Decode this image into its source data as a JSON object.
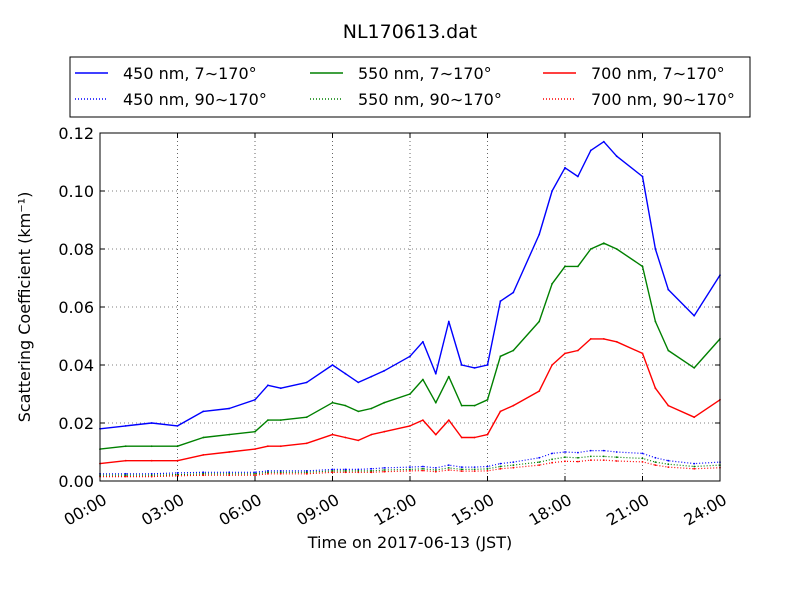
{
  "chart_data": {
    "type": "line",
    "title": "NL170613.dat",
    "xlabel": "Time on 2017-06-13 (JST)",
    "ylabel": "Scattering Coefficient (km⁻¹)",
    "x_ticks": [
      "00:00",
      "03:00",
      "06:00",
      "09:00",
      "12:00",
      "15:00",
      "18:00",
      "21:00",
      "24:00"
    ],
    "y_ticks": [
      "0.00",
      "0.02",
      "0.04",
      "0.06",
      "0.08",
      "0.10",
      "0.12"
    ],
    "xlim": [
      "00:00",
      "24:00"
    ],
    "ylim": [
      0,
      0.12
    ],
    "grid": true,
    "legend_position": "top",
    "x": [
      "00:00",
      "01:00",
      "02:00",
      "03:00",
      "04:00",
      "05:00",
      "06:00",
      "06:30",
      "07:00",
      "08:00",
      "09:00",
      "09:30",
      "10:00",
      "10:30",
      "11:00",
      "12:00",
      "12:30",
      "13:00",
      "13:30",
      "14:00",
      "14:30",
      "15:00",
      "15:30",
      "16:00",
      "17:00",
      "17:30",
      "18:00",
      "18:30",
      "19:00",
      "19:30",
      "20:00",
      "21:00",
      "21:30",
      "22:00",
      "23:00",
      "24:00"
    ],
    "series": [
      {
        "name": "450 nm, 7∼170°",
        "color": "#0000ff",
        "style": "solid",
        "values": [
          0.018,
          0.019,
          0.02,
          0.019,
          0.024,
          0.025,
          0.028,
          0.033,
          0.032,
          0.034,
          0.04,
          0.037,
          0.034,
          0.036,
          0.038,
          0.043,
          0.048,
          0.037,
          0.055,
          0.04,
          0.039,
          0.04,
          0.062,
          0.065,
          0.085,
          0.1,
          0.108,
          0.105,
          0.114,
          0.117,
          0.112,
          0.105,
          0.08,
          0.066,
          0.057,
          0.071
        ]
      },
      {
        "name": "450 nm, 90∼170°",
        "color": "#0000ff",
        "style": "dotted",
        "values": [
          0.0025,
          0.0025,
          0.0025,
          0.0028,
          0.003,
          0.003,
          0.003,
          0.0035,
          0.0035,
          0.0035,
          0.004,
          0.004,
          0.004,
          0.0042,
          0.0045,
          0.0048,
          0.005,
          0.0045,
          0.0055,
          0.0048,
          0.0048,
          0.005,
          0.006,
          0.0065,
          0.008,
          0.0095,
          0.01,
          0.0098,
          0.0105,
          0.0105,
          0.01,
          0.0095,
          0.008,
          0.007,
          0.006,
          0.0065
        ]
      },
      {
        "name": "550 nm, 7∼170°",
        "color": "#008000",
        "style": "solid",
        "values": [
          0.011,
          0.012,
          0.012,
          0.012,
          0.015,
          0.016,
          0.017,
          0.021,
          0.021,
          0.022,
          0.027,
          0.026,
          0.024,
          0.025,
          0.027,
          0.03,
          0.035,
          0.027,
          0.036,
          0.026,
          0.026,
          0.028,
          0.043,
          0.045,
          0.055,
          0.068,
          0.074,
          0.074,
          0.08,
          0.082,
          0.08,
          0.074,
          0.055,
          0.045,
          0.039,
          0.049
        ]
      },
      {
        "name": "550 nm, 90∼170°",
        "color": "#008000",
        "style": "dotted",
        "values": [
          0.002,
          0.002,
          0.002,
          0.0022,
          0.0025,
          0.0025,
          0.0025,
          0.003,
          0.003,
          0.003,
          0.0035,
          0.0035,
          0.0035,
          0.0035,
          0.0038,
          0.004,
          0.0042,
          0.0038,
          0.0045,
          0.004,
          0.004,
          0.0042,
          0.005,
          0.0055,
          0.0065,
          0.0075,
          0.0082,
          0.008,
          0.0085,
          0.0085,
          0.0082,
          0.0078,
          0.0065,
          0.0058,
          0.005,
          0.0055
        ]
      },
      {
        "name": "700 nm, 7∼170°",
        "color": "#ff0000",
        "style": "solid",
        "values": [
          0.006,
          0.007,
          0.007,
          0.007,
          0.009,
          0.01,
          0.011,
          0.012,
          0.012,
          0.013,
          0.016,
          0.015,
          0.014,
          0.016,
          0.017,
          0.019,
          0.021,
          0.016,
          0.021,
          0.015,
          0.015,
          0.016,
          0.024,
          0.026,
          0.031,
          0.04,
          0.044,
          0.045,
          0.049,
          0.049,
          0.048,
          0.044,
          0.032,
          0.026,
          0.022,
          0.028
        ]
      },
      {
        "name": "700 nm, 90∼170°",
        "color": "#ff0000",
        "style": "dotted",
        "values": [
          0.0015,
          0.0015,
          0.0015,
          0.0018,
          0.002,
          0.002,
          0.002,
          0.0025,
          0.0025,
          0.0025,
          0.003,
          0.003,
          0.003,
          0.003,
          0.0032,
          0.0035,
          0.0036,
          0.0032,
          0.0038,
          0.0034,
          0.0034,
          0.0035,
          0.0042,
          0.0046,
          0.0055,
          0.0063,
          0.0068,
          0.0067,
          0.0072,
          0.0072,
          0.0069,
          0.0066,
          0.0055,
          0.0048,
          0.0042,
          0.0046
        ]
      }
    ]
  }
}
